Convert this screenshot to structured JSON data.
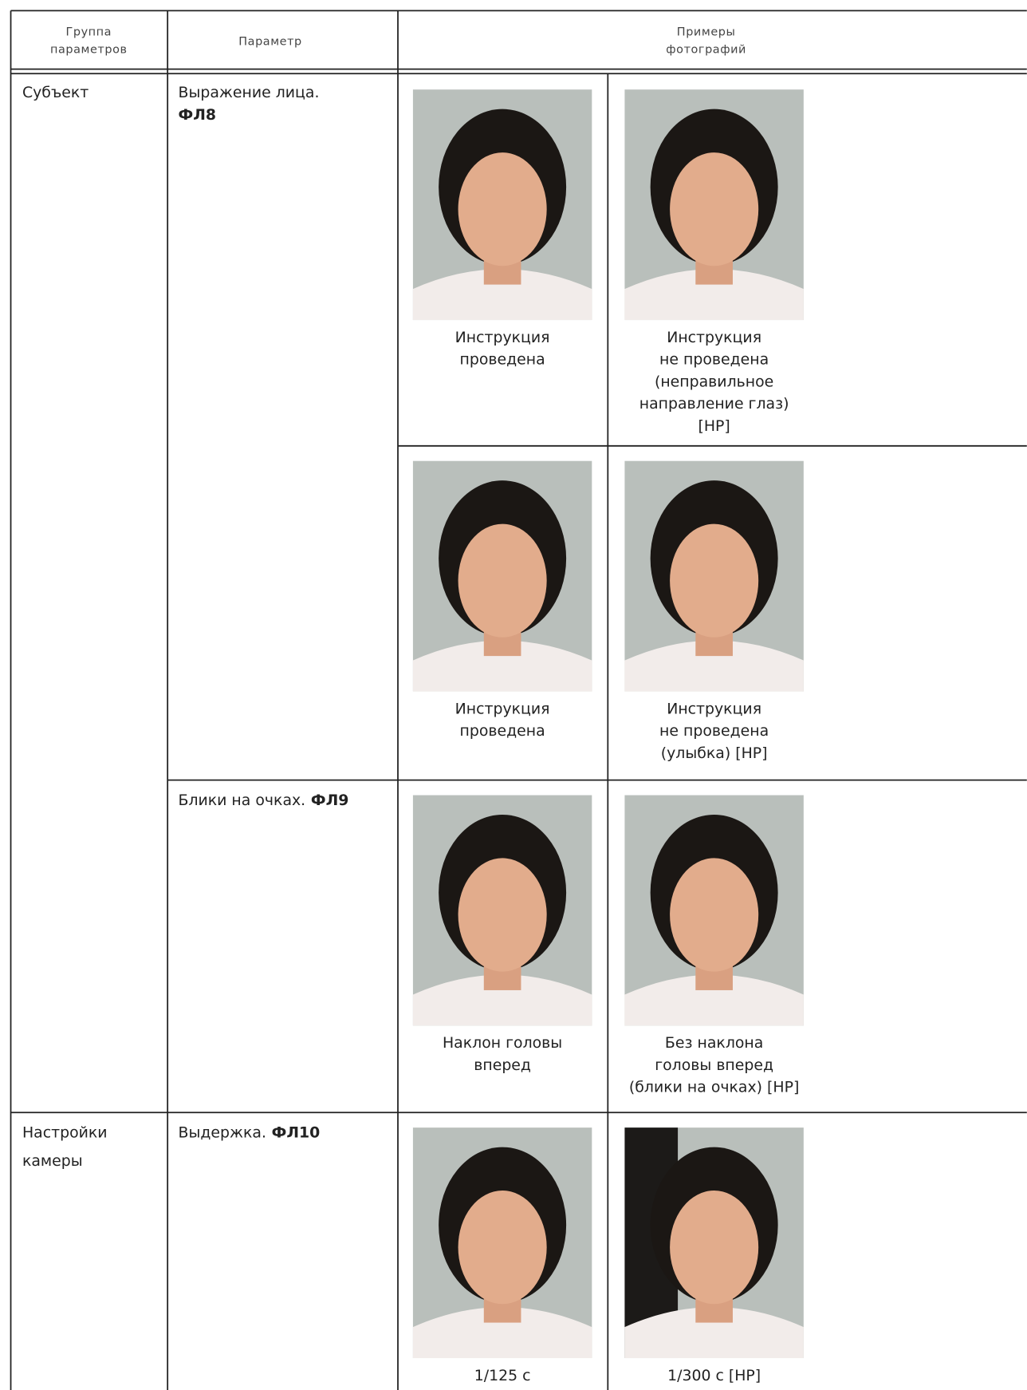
{
  "table": {
    "header": {
      "group": [
        "Группа",
        "параметров"
      ],
      "parameter": "Параметр",
      "examples": [
        "Примеры",
        "фотографий"
      ]
    },
    "groups": [
      {
        "name": [
          "Субъект"
        ],
        "parameters": [
          {
            "label": "Выражение лица.",
            "code": "ФЛ8",
            "example_rows": [
              [
                [
                  "Инструкция",
                  "проведена"
                ],
                [
                  "Инструкция",
                  "не проведена",
                  "(неправильное",
                  "направление глаз)",
                  "[НР]"
                ]
              ],
              [
                [
                  "Инструкция",
                  "проведена"
                ],
                [
                  "Инструкция",
                  "не проведена",
                  "(улыбка) [НР]"
                ]
              ]
            ]
          },
          {
            "label": "Блики на очках.",
            "code": "ФЛ9",
            "example_rows": [
              [
                [
                  "Наклон головы",
                  "вперед"
                ],
                [
                  "Без наклона",
                  "головы вперед",
                  "(блики на очках) [НР]"
                ]
              ]
            ]
          }
        ]
      },
      {
        "name": [
          "Настройки",
          "камеры"
        ],
        "parameters": [
          {
            "label": "Выдержка.",
            "code": "ФЛ10",
            "example_rows": [
              [
                [
                  "1/125 с"
                ],
                [
                  "1/300 с [НР]"
                ]
              ]
            ]
          }
        ]
      }
    ]
  }
}
